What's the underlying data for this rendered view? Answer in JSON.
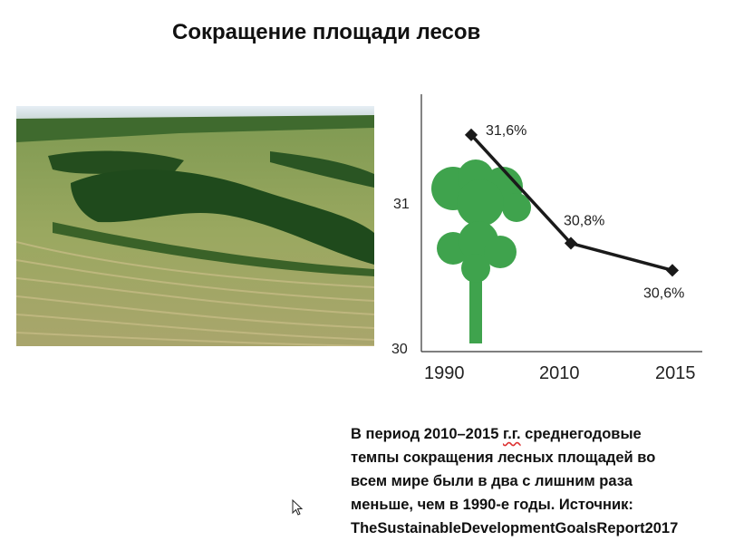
{
  "slide": {
    "title": "Сокращение площади лесов",
    "caption": {
      "line1_a": "В период 2010–2015 ",
      "line1_b": "г.г.",
      "line1_c": " среднегодовые",
      "line2": "темпы сокращения лесных площадей во",
      "line3": "всем мире были в два с лишним  раза",
      "line4": "меньше, чем в 1990-е годы. Источник:",
      "line5": "TheSustainableDevelopmentGoalsReport2017"
    }
  },
  "chart_data": {
    "type": "line",
    "title": "",
    "xlabel": "",
    "ylabel": "",
    "x": [
      "1990",
      "2010",
      "2015"
    ],
    "values": [
      31.6,
      30.8,
      30.6
    ],
    "data_labels": [
      "31,6%",
      "30,8%",
      "30,6%"
    ],
    "y_ticks": [
      "30",
      "31"
    ],
    "ylim": [
      30,
      31.9
    ],
    "grid": false,
    "series_color": "#1a1a1a",
    "decoration": "green-tree-icon"
  }
}
